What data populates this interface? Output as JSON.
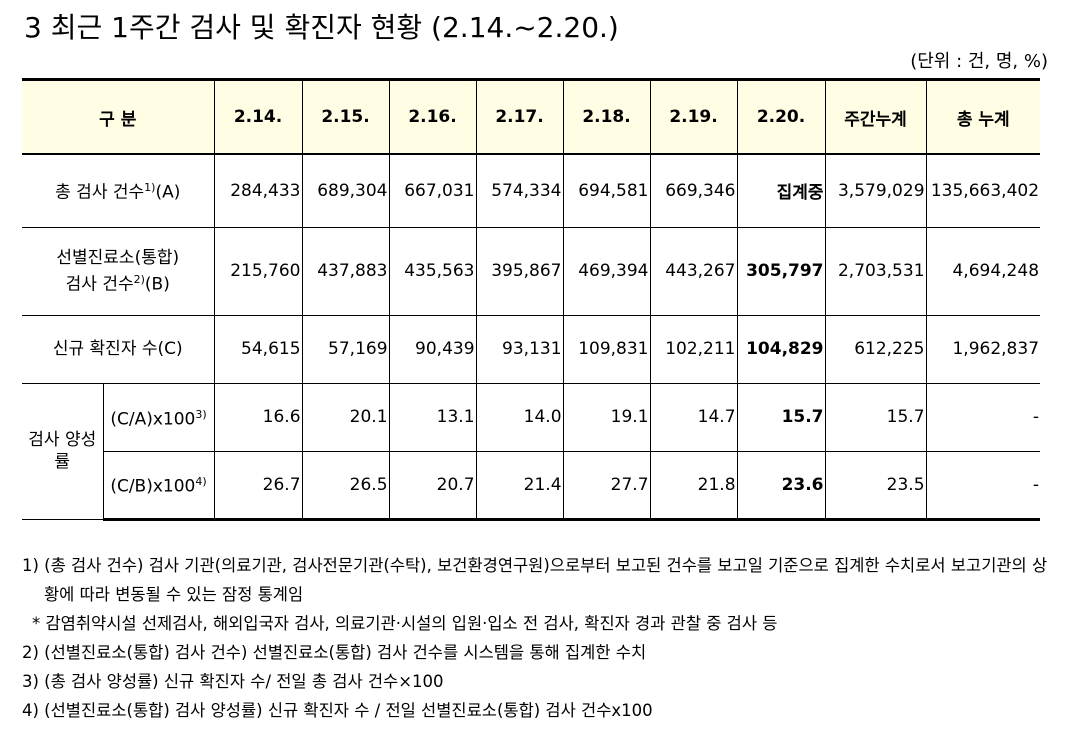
{
  "title": "3 최근 1주간 검사 및 확진자 현황 (2.14.~2.20.)",
  "unit": "(단위 : 건, 명, %)",
  "table": {
    "header": [
      "구 분",
      "2.14.",
      "2.15.",
      "2.16.",
      "2.17.",
      "2.18.",
      "2.19.",
      "2.20.",
      "주간누계",
      "총 누계"
    ],
    "group_label": "검사 양성률",
    "rows": [
      {
        "label": [
          "총 검사 건수"
        ],
        "sup": "1)",
        "suffix": "(A)",
        "values": [
          "284,433",
          "689,304",
          "667,031",
          "574,334",
          "694,581",
          "669,346",
          "집계중",
          "3,579,029",
          "135,663,402"
        ]
      },
      {
        "label": [
          "선별진료소(통합)",
          "검사 건수"
        ],
        "sup": "2)",
        "suffix": "(B)",
        "values": [
          "215,760",
          "437,883",
          "435,563",
          "395,867",
          "469,394",
          "443,267",
          "305,797",
          "2,703,531",
          "4,694,248"
        ]
      },
      {
        "label": [
          "신규 확진자 수(C)"
        ],
        "values": [
          "54,615",
          "57,169",
          "90,439",
          "93,131",
          "109,831",
          "102,211",
          "104,829",
          "612,225",
          "1,962,837"
        ]
      },
      {
        "label": [
          "(C/A)x100"
        ],
        "sup": "3)",
        "values": [
          "16.6",
          "20.1",
          "13.1",
          "14.0",
          "19.1",
          "14.7",
          "15.7",
          "15.7",
          "-"
        ]
      },
      {
        "label": [
          "(C/B)x100"
        ],
        "sup": "4)",
        "values": [
          "26.7",
          "26.5",
          "20.7",
          "21.4",
          "27.7",
          "21.8",
          "23.6",
          "23.5",
          "-"
        ]
      }
    ]
  },
  "notes": [
    "1) (총 검사 건수) 검사 기관(의료기관, 검사전문기관(수탁), 보건환경연구원)으로부터 보고된 건수를 보고일 기준으로 집계한 수치로서 보고기관의 상황에 따라 변동될 수 있는 잠정 통계임",
    "* 감염취약시설 선제검사, 해외입국자 검사, 의료기관·시설의 입원·입소 전 검사, 확진자 경과 관찰 중 검사 등",
    "2) (선별진료소(통합) 검사 건수) 선별진료소(통합) 검사 건수를 시스템을 통해 집계한 수치",
    "3) (총 검사 양성률) 신규 확진자 수/ 전일 총 검사 건수×100",
    "4) (선별진료소(통합) 검사 양성률) 신규 확진자 수 / 전일 선별진료소(통합) 검사 건수x100"
  ]
}
